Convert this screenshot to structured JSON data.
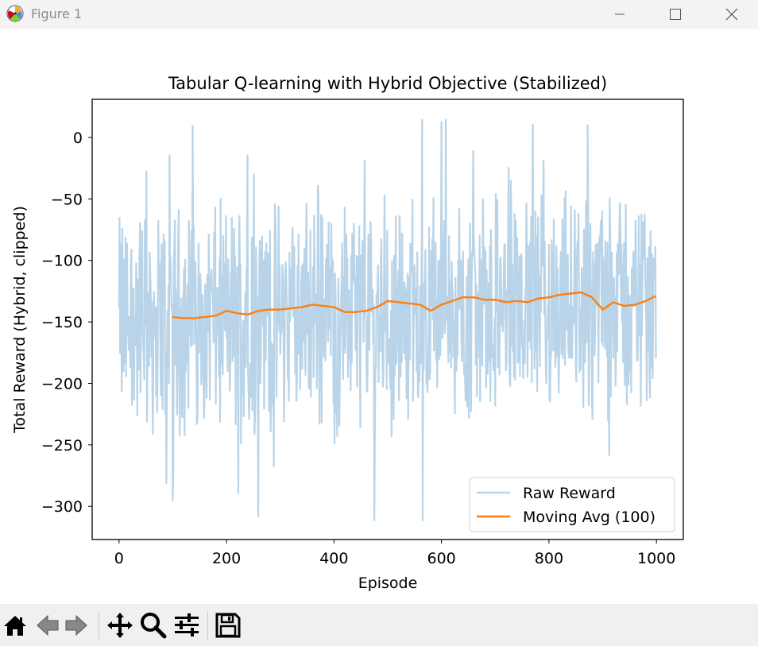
{
  "window": {
    "title": "Figure 1"
  },
  "chart_data": {
    "type": "line",
    "title": "Tabular Q-learning with Hybrid Objective (Stabilized)",
    "xlabel": "Episode",
    "ylabel": "Total Reward (Hybrid, clipped)",
    "xlim": [
      -50,
      1050
    ],
    "ylim": [
      -327,
      31
    ],
    "xticks": [
      0,
      200,
      400,
      600,
      800,
      1000
    ],
    "xtick_labels": [
      "0",
      "200",
      "400",
      "600",
      "800",
      "1000"
    ],
    "yticks": [
      0,
      -50,
      -100,
      -150,
      -200,
      -250,
      -300
    ],
    "ytick_labels": [
      "0",
      "−50",
      "−100",
      "−150",
      "−200",
      "−250",
      "−300"
    ],
    "grid": false,
    "legend_position": "lower right",
    "series": [
      {
        "name": "Raw Reward",
        "color": "#b9d4e8",
        "x_start": 0,
        "x_end": 999,
        "values_note_range": [
          -312,
          15
        ],
        "peaks": [
          {
            "x": 137,
            "y": 10
          },
          {
            "x": 239,
            "y": -14
          },
          {
            "x": 608,
            "y": 15
          },
          {
            "x": 770,
            "y": 11
          },
          {
            "x": 475,
            "y": -312
          },
          {
            "x": 222,
            "y": -290
          },
          {
            "x": 88,
            "y": -282
          }
        ]
      },
      {
        "name": "Moving Avg (100)",
        "color": "#ff7f0e",
        "x": [
          99,
          120,
          140,
          160,
          180,
          200,
          220,
          240,
          260,
          280,
          300,
          320,
          340,
          360,
          380,
          400,
          420,
          440,
          460,
          480,
          500,
          520,
          540,
          560,
          580,
          600,
          620,
          640,
          660,
          680,
          700,
          720,
          740,
          760,
          780,
          800,
          820,
          840,
          860,
          880,
          900,
          920,
          940,
          960,
          980,
          999
        ],
        "values": [
          -146,
          -147,
          -147,
          -146,
          -145,
          -141,
          -143,
          -144,
          -141,
          -140,
          -140,
          -139,
          -138,
          -136,
          -137,
          -138,
          -142,
          -142,
          -141,
          -138,
          -133,
          -134,
          -135,
          -136,
          -141,
          -136,
          -133,
          -130,
          -130,
          -132,
          -132,
          -134,
          -133,
          -134,
          -131,
          -130,
          -128,
          -127,
          -126,
          -130,
          -140,
          -134,
          -137,
          -136,
          -133,
          -129
        ]
      }
    ]
  },
  "toolbar": {
    "icons": [
      "home-icon",
      "back-icon",
      "forward-icon",
      "pan-icon",
      "zoom-icon",
      "configure-subplots-icon",
      "save-icon"
    ]
  }
}
